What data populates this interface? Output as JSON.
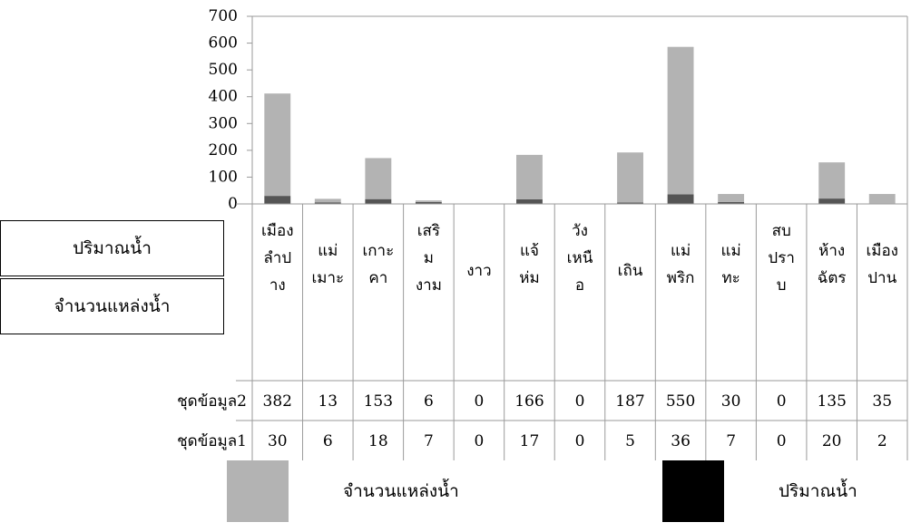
{
  "chart_data": {
    "type": "bar",
    "stacked": true,
    "categories": [
      [
        "เมือง",
        "ลำป",
        "าง"
      ],
      [
        "แม่",
        "เมาะ"
      ],
      [
        "เกาะ",
        "คา"
      ],
      [
        "เสริ",
        "ม",
        "งาม"
      ],
      [
        "งาว"
      ],
      [
        "แจ้",
        "ห่ม"
      ],
      [
        "วัง",
        "เหนื",
        "อ"
      ],
      [
        "เถิน"
      ],
      [
        "แม่",
        "พริก"
      ],
      [
        "แม่",
        "ทะ"
      ],
      [
        "สบ",
        "ปรา",
        "บ"
      ],
      [
        "ห้าง",
        "ฉัตร"
      ],
      [
        "เมือง",
        "ปาน"
      ]
    ],
    "series": [
      {
        "name": "ชุดข้อมูล1",
        "color": "#555555",
        "values": [
          30,
          6,
          18,
          7,
          0,
          17,
          0,
          5,
          36,
          7,
          0,
          20,
          2
        ]
      },
      {
        "name": "ชุดข้อมูล2",
        "color": "#b3b3b3",
        "values": [
          382,
          13,
          153,
          6,
          0,
          166,
          0,
          187,
          550,
          30,
          0,
          135,
          35
        ]
      }
    ],
    "ylim": [
      0,
      700
    ],
    "yticks": [
      0,
      100,
      200,
      300,
      400,
      500,
      600,
      700
    ],
    "grid": false
  },
  "legend": {
    "items": [
      {
        "label": "จำนวนแหล่งน้ำ",
        "color": "#b3b3b3"
      },
      {
        "label": "ปริมาณน้ำ",
        "color": "#000000"
      }
    ]
  },
  "side_labels": {
    "volume": "ปริมาณน้ำ",
    "count": "จำนวนแหล่งน้ำ"
  }
}
